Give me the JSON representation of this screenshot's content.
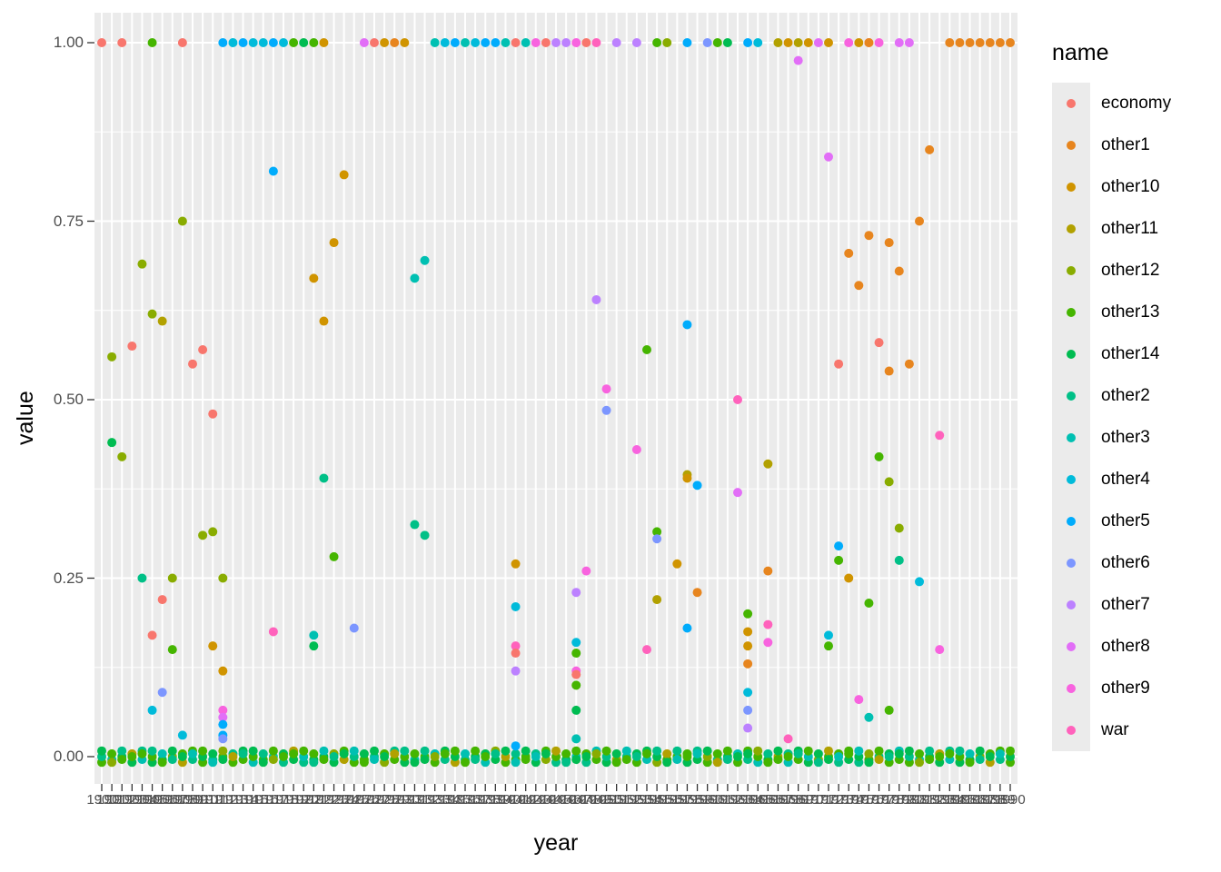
{
  "figure": {
    "bg": "#FFFFFF",
    "panel_bg": "#EBEBEB",
    "grid_color": "#FFFFFF",
    "tick_color": "#333333",
    "axis_text_color": "#4D4D4D"
  },
  "axes": {
    "x_label": "year",
    "y_label": "value",
    "y_ticks": [
      "0.00",
      "0.25",
      "0.50",
      "0.75",
      "1.00"
    ],
    "y_tick_values": [
      0,
      0.25,
      0.5,
      0.75,
      1.0
    ],
    "y_minor_values": [
      0.125,
      0.375,
      0.625,
      0.875
    ],
    "x_tick_start": 1900,
    "x_tick_end": 1990,
    "x_tick_step": 1,
    "x_labels_note": "one label per year, heavily overlapping and illegible"
  },
  "legend": {
    "title": "name",
    "items": [
      {
        "label": "economy",
        "color": "#F8766D"
      },
      {
        "label": "other1",
        "color": "#E7851E"
      },
      {
        "label": "other10",
        "color": "#D09400"
      },
      {
        "label": "other11",
        "color": "#B2A100"
      },
      {
        "label": "other12",
        "color": "#89AC00"
      },
      {
        "label": "other13",
        "color": "#45B500"
      },
      {
        "label": "other14",
        "color": "#00BC51"
      },
      {
        "label": "other2",
        "color": "#00C087"
      },
      {
        "label": "other3",
        "color": "#00C0B2"
      },
      {
        "label": "other4",
        "color": "#00BBDA"
      },
      {
        "label": "other5",
        "color": "#00ACFC"
      },
      {
        "label": "other6",
        "color": "#7C96FF"
      },
      {
        "label": "other7",
        "color": "#BC81FF"
      },
      {
        "label": "other8",
        "color": "#E26EF7"
      },
      {
        "label": "other9",
        "color": "#F863DF"
      },
      {
        "label": "war",
        "color": "#FF62BC"
      }
    ]
  },
  "chart_data": {
    "type": "scatter",
    "title": "",
    "xlabel": "year",
    "ylabel": "value",
    "xlim": [
      1900,
      1990
    ],
    "ylim": [
      0,
      1
    ],
    "grid": true,
    "legend_position": "right",
    "series_key": "name",
    "points": [
      [
        1900,
        1,
        "economy"
      ],
      [
        1902,
        1,
        "economy"
      ],
      [
        1905,
        1,
        "other13"
      ],
      [
        1908,
        1,
        "economy"
      ],
      [
        1912,
        1,
        "other5"
      ],
      [
        1913,
        1,
        "other4"
      ],
      [
        1914,
        1,
        "other5"
      ],
      [
        1915,
        1,
        "other4"
      ],
      [
        1916,
        1,
        "other4"
      ],
      [
        1917,
        1,
        "other5"
      ],
      [
        1918,
        1,
        "other4"
      ],
      [
        1919,
        1,
        "other13"
      ],
      [
        1920,
        1,
        "other14"
      ],
      [
        1921,
        1,
        "other13"
      ],
      [
        1922,
        1,
        "other10"
      ],
      [
        1926,
        1,
        "other8"
      ],
      [
        1927,
        1,
        "economy"
      ],
      [
        1928,
        1,
        "other10"
      ],
      [
        1929,
        1,
        "other1"
      ],
      [
        1930,
        1,
        "other10"
      ],
      [
        1933,
        1,
        "other3"
      ],
      [
        1934,
        1,
        "other4"
      ],
      [
        1935,
        1,
        "other5"
      ],
      [
        1936,
        1,
        "other3"
      ],
      [
        1937,
        1,
        "other4"
      ],
      [
        1938,
        1,
        "other5"
      ],
      [
        1939,
        1,
        "other5"
      ],
      [
        1940,
        1,
        "other3"
      ],
      [
        1941,
        1,
        "economy"
      ],
      [
        1942,
        1,
        "other3"
      ],
      [
        1943,
        1,
        "other9"
      ],
      [
        1944,
        1,
        "economy"
      ],
      [
        1945,
        1,
        "other7"
      ],
      [
        1946,
        1,
        "other7"
      ],
      [
        1947,
        1,
        "other9"
      ],
      [
        1948,
        1,
        "economy"
      ],
      [
        1949,
        1,
        "war"
      ],
      [
        1951,
        1,
        "other7"
      ],
      [
        1953,
        1,
        "other7"
      ],
      [
        1955,
        1,
        "other13"
      ],
      [
        1956,
        1,
        "other12"
      ],
      [
        1958,
        1,
        "other5"
      ],
      [
        1960,
        1,
        "other6"
      ],
      [
        1961,
        1,
        "other13"
      ],
      [
        1962,
        1,
        "other14"
      ],
      [
        1964,
        1,
        "other5"
      ],
      [
        1965,
        1,
        "other4"
      ],
      [
        1967,
        1,
        "other11"
      ],
      [
        1968,
        1,
        "other10"
      ],
      [
        1969,
        1,
        "other11"
      ],
      [
        1970,
        1,
        "other10"
      ],
      [
        1971,
        1,
        "other8"
      ],
      [
        1972,
        1,
        "other10"
      ],
      [
        1974,
        1,
        "other9"
      ],
      [
        1975,
        1,
        "other10"
      ],
      [
        1976,
        1,
        "economy"
      ],
      [
        1977,
        1,
        "other9"
      ],
      [
        1979,
        1,
        "other8"
      ],
      [
        1980,
        1,
        "other8"
      ],
      [
        1969,
        0.975,
        "other8"
      ],
      [
        1976,
        1,
        "other1"
      ],
      [
        1984,
        1,
        "other1"
      ],
      [
        1985,
        1,
        "other1"
      ],
      [
        1986,
        1,
        "other1"
      ],
      [
        1987,
        1,
        "other1"
      ],
      [
        1988,
        1,
        "other1"
      ],
      [
        1989,
        1,
        "other1"
      ],
      [
        1990,
        1,
        "other1"
      ],
      [
        1901,
        0.56,
        "other12"
      ],
      [
        1901,
        0.44,
        "other14"
      ],
      [
        1902,
        0.42,
        "other12"
      ],
      [
        1903,
        0.575,
        "economy"
      ],
      [
        1904,
        0.69,
        "other12"
      ],
      [
        1904,
        0.25,
        "other2"
      ],
      [
        1905,
        0.62,
        "other12"
      ],
      [
        1906,
        0.61,
        "other11"
      ],
      [
        1906,
        0.22,
        "economy"
      ],
      [
        1905,
        0.17,
        "economy"
      ],
      [
        1905,
        0.065,
        "other4"
      ],
      [
        1906,
        0.09,
        "other6"
      ],
      [
        1907,
        0.15,
        "other13"
      ],
      [
        1907,
        0.25,
        "other12"
      ],
      [
        1908,
        0.75,
        "other12"
      ],
      [
        1908,
        0.03,
        "other4"
      ],
      [
        1909,
        0.55,
        "economy"
      ],
      [
        1910,
        0.57,
        "economy"
      ],
      [
        1910,
        0.31,
        "other12"
      ],
      [
        1911,
        0.315,
        "other12"
      ],
      [
        1911,
        0.155,
        "other10"
      ],
      [
        1911,
        0.48,
        "economy"
      ],
      [
        1912,
        0.25,
        "other12"
      ],
      [
        1912,
        0.12,
        "other10"
      ],
      [
        1912,
        0.065,
        "other9"
      ],
      [
        1912,
        0.055,
        "other8"
      ],
      [
        1912,
        0.045,
        "other5"
      ],
      [
        1912,
        0.03,
        "other5"
      ],
      [
        1912,
        0.025,
        "other6"
      ],
      [
        1917,
        0.82,
        "other5"
      ],
      [
        1917,
        0.175,
        "war"
      ],
      [
        1921,
        0.67,
        "other10"
      ],
      [
        1921,
        0.17,
        "other3"
      ],
      [
        1921,
        0.155,
        "other14"
      ],
      [
        1922,
        0.61,
        "other10"
      ],
      [
        1922,
        0.39,
        "other2"
      ],
      [
        1923,
        0.72,
        "other10"
      ],
      [
        1923,
        0.28,
        "other13"
      ],
      [
        1924,
        0.815,
        "other10"
      ],
      [
        1925,
        0.18,
        "other6"
      ],
      [
        1931,
        0.325,
        "other2"
      ],
      [
        1931,
        0.67,
        "other3"
      ],
      [
        1932,
        0.31,
        "other2"
      ],
      [
        1932,
        0.695,
        "other3"
      ],
      [
        1941,
        0.27,
        "other10"
      ],
      [
        1941,
        0.21,
        "other4"
      ],
      [
        1941,
        0.155,
        "war"
      ],
      [
        1941,
        0.145,
        "economy"
      ],
      [
        1941,
        0.12,
        "other7"
      ],
      [
        1941,
        0.015,
        "other5"
      ],
      [
        1947,
        0.23,
        "other7"
      ],
      [
        1947,
        0.16,
        "other4"
      ],
      [
        1947,
        0.145,
        "other13"
      ],
      [
        1947,
        0.12,
        "other9"
      ],
      [
        1947,
        0.115,
        "economy"
      ],
      [
        1947,
        0.1,
        "other13"
      ],
      [
        1947,
        0.065,
        "other14"
      ],
      [
        1947,
        0.025,
        "other3"
      ],
      [
        1948,
        0.26,
        "other9"
      ],
      [
        1949,
        0.64,
        "other7"
      ],
      [
        1950,
        0.485,
        "other6"
      ],
      [
        1950,
        0.515,
        "other9"
      ],
      [
        1953,
        0.43,
        "other9"
      ],
      [
        1954,
        0.15,
        "war"
      ],
      [
        1954,
        0.57,
        "other13"
      ],
      [
        1955,
        0.315,
        "other13"
      ],
      [
        1955,
        0.22,
        "other11"
      ],
      [
        1955,
        0.305,
        "other6"
      ],
      [
        1957,
        0.27,
        "other10"
      ],
      [
        1958,
        0.395,
        "other11"
      ],
      [
        1958,
        0.39,
        "other10"
      ],
      [
        1958,
        0.18,
        "other5"
      ],
      [
        1958,
        0.605,
        "other5"
      ],
      [
        1959,
        0.23,
        "other1"
      ],
      [
        1959,
        0.38,
        "other5"
      ],
      [
        1963,
        0.5,
        "war"
      ],
      [
        1963,
        0.37,
        "other8"
      ],
      [
        1964,
        0.2,
        "other13"
      ],
      [
        1964,
        0.175,
        "other10"
      ],
      [
        1964,
        0.155,
        "other10"
      ],
      [
        1964,
        0.13,
        "other1"
      ],
      [
        1964,
        0.09,
        "other4"
      ],
      [
        1964,
        0.065,
        "other6"
      ],
      [
        1964,
        0.04,
        "other7"
      ],
      [
        1966,
        0.41,
        "other11"
      ],
      [
        1966,
        0.26,
        "other1"
      ],
      [
        1966,
        0.185,
        "war"
      ],
      [
        1966,
        0.16,
        "other9"
      ],
      [
        1968,
        0.025,
        "war"
      ],
      [
        1972,
        0.84,
        "other8"
      ],
      [
        1973,
        0.55,
        "economy"
      ],
      [
        1973,
        0.275,
        "other13"
      ],
      [
        1973,
        0.295,
        "other5"
      ],
      [
        1972,
        0.17,
        "other4"
      ],
      [
        1972,
        0.155,
        "other13"
      ],
      [
        1974,
        0.705,
        "other1"
      ],
      [
        1974,
        0.25,
        "other10"
      ],
      [
        1975,
        0.66,
        "other1"
      ],
      [
        1976,
        0.73,
        "other1"
      ],
      [
        1977,
        0.58,
        "economy"
      ],
      [
        1977,
        0.42,
        "other13"
      ],
      [
        1976,
        0.215,
        "other13"
      ],
      [
        1975,
        0.08,
        "other9"
      ],
      [
        1976,
        0.055,
        "other3"
      ],
      [
        1978,
        0.72,
        "other1"
      ],
      [
        1978,
        0.54,
        "other1"
      ],
      [
        1978,
        0.385,
        "other12"
      ],
      [
        1979,
        0.68,
        "other1"
      ],
      [
        1979,
        0.32,
        "other12"
      ],
      [
        1978,
        0.065,
        "other13"
      ],
      [
        1979,
        0.275,
        "other2"
      ],
      [
        1980,
        0.55,
        "other1"
      ],
      [
        1981,
        0.75,
        "other1"
      ],
      [
        1981,
        0.245,
        "other4"
      ],
      [
        1982,
        0.85,
        "other1"
      ],
      [
        1983,
        0.15,
        "other9"
      ],
      [
        1983,
        0.45,
        "war"
      ]
    ],
    "baseline": {
      "y": 0,
      "years_start": 1900,
      "years_end": 1990,
      "per_year": 3,
      "jitter": 0.004,
      "pattern": [
        "other13",
        "other2",
        "other14",
        "other3",
        "other13",
        "other12",
        "other14",
        "other2",
        "other13",
        "other11",
        "other14",
        "other13",
        "other2",
        "other3",
        "other13",
        "other14"
      ]
    },
    "notes": "dense row of mostly green/teal points at value 0 for every year; row of mixed-colour points at value 1; x tick labels overlap into an illegible smear"
  }
}
